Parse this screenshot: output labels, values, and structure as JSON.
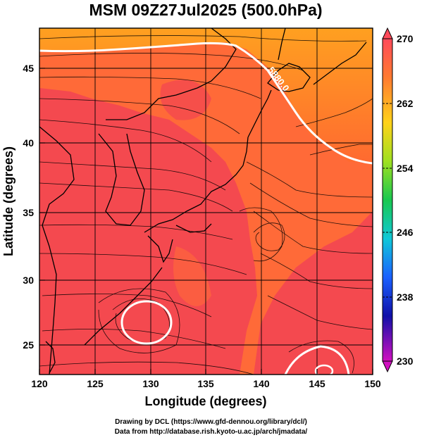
{
  "title": "MSM 09Z27Jul2025 (500.0hPa)",
  "x_axis": {
    "label": "Longitude (degrees)",
    "ticks": [
      "120",
      "125",
      "130",
      "135",
      "140",
      "145",
      "150"
    ]
  },
  "y_axis": {
    "label": "Latitude  (degrees)",
    "ticks": [
      "25",
      "30",
      "35",
      "40",
      "45"
    ]
  },
  "colorbar": {
    "ticks": [
      "270",
      "262",
      "254",
      "246",
      "238",
      "230"
    ],
    "colors": [
      "#ff4a5a",
      "#ff7a30",
      "#ffd21a",
      "#9fe020",
      "#18c850",
      "#10c8d8",
      "#1a60ff",
      "#1010a8",
      "#d010c0"
    ]
  },
  "contour_label": "5880.0",
  "credits": {
    "line1": "Drawing by DCL (https://www.gfd-dennou.org/library/dcl/)",
    "line2": "Data from http://database.rish.kyoto-u.ac.jp/arch/jmadata/"
  },
  "map_colors": {
    "background": "#f4494f",
    "warm_band": "#ff7a30",
    "north_band": "#ff9a2a",
    "contour": "#ffffff"
  }
}
